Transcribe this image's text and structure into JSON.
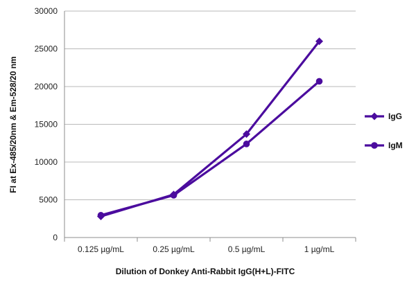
{
  "chart_data": {
    "type": "line",
    "title": "",
    "xlabel": "Dilution of Donkey Anti-Rabbit IgG(H+L)-FITC",
    "ylabel": "FI at Ex-485/20nm & Em-528/20 nm",
    "categories": [
      "0.125 µg/mL",
      "0.25 µg/mL",
      "0.5 µg/mL",
      "1 µg/mL"
    ],
    "ylim": [
      0,
      30000
    ],
    "yticks": [
      0,
      5000,
      10000,
      15000,
      20000,
      25000,
      30000
    ],
    "grid": "horizontal",
    "legend_position": "right",
    "series": [
      {
        "name": "IgG",
        "values": [
          2800,
          5700,
          13700,
          26000
        ],
        "color": "#4B0C9E",
        "marker": "diamond"
      },
      {
        "name": "IgM",
        "values": [
          2950,
          5600,
          12400,
          20700
        ],
        "color": "#4B0C9E",
        "marker": "circle"
      }
    ]
  }
}
